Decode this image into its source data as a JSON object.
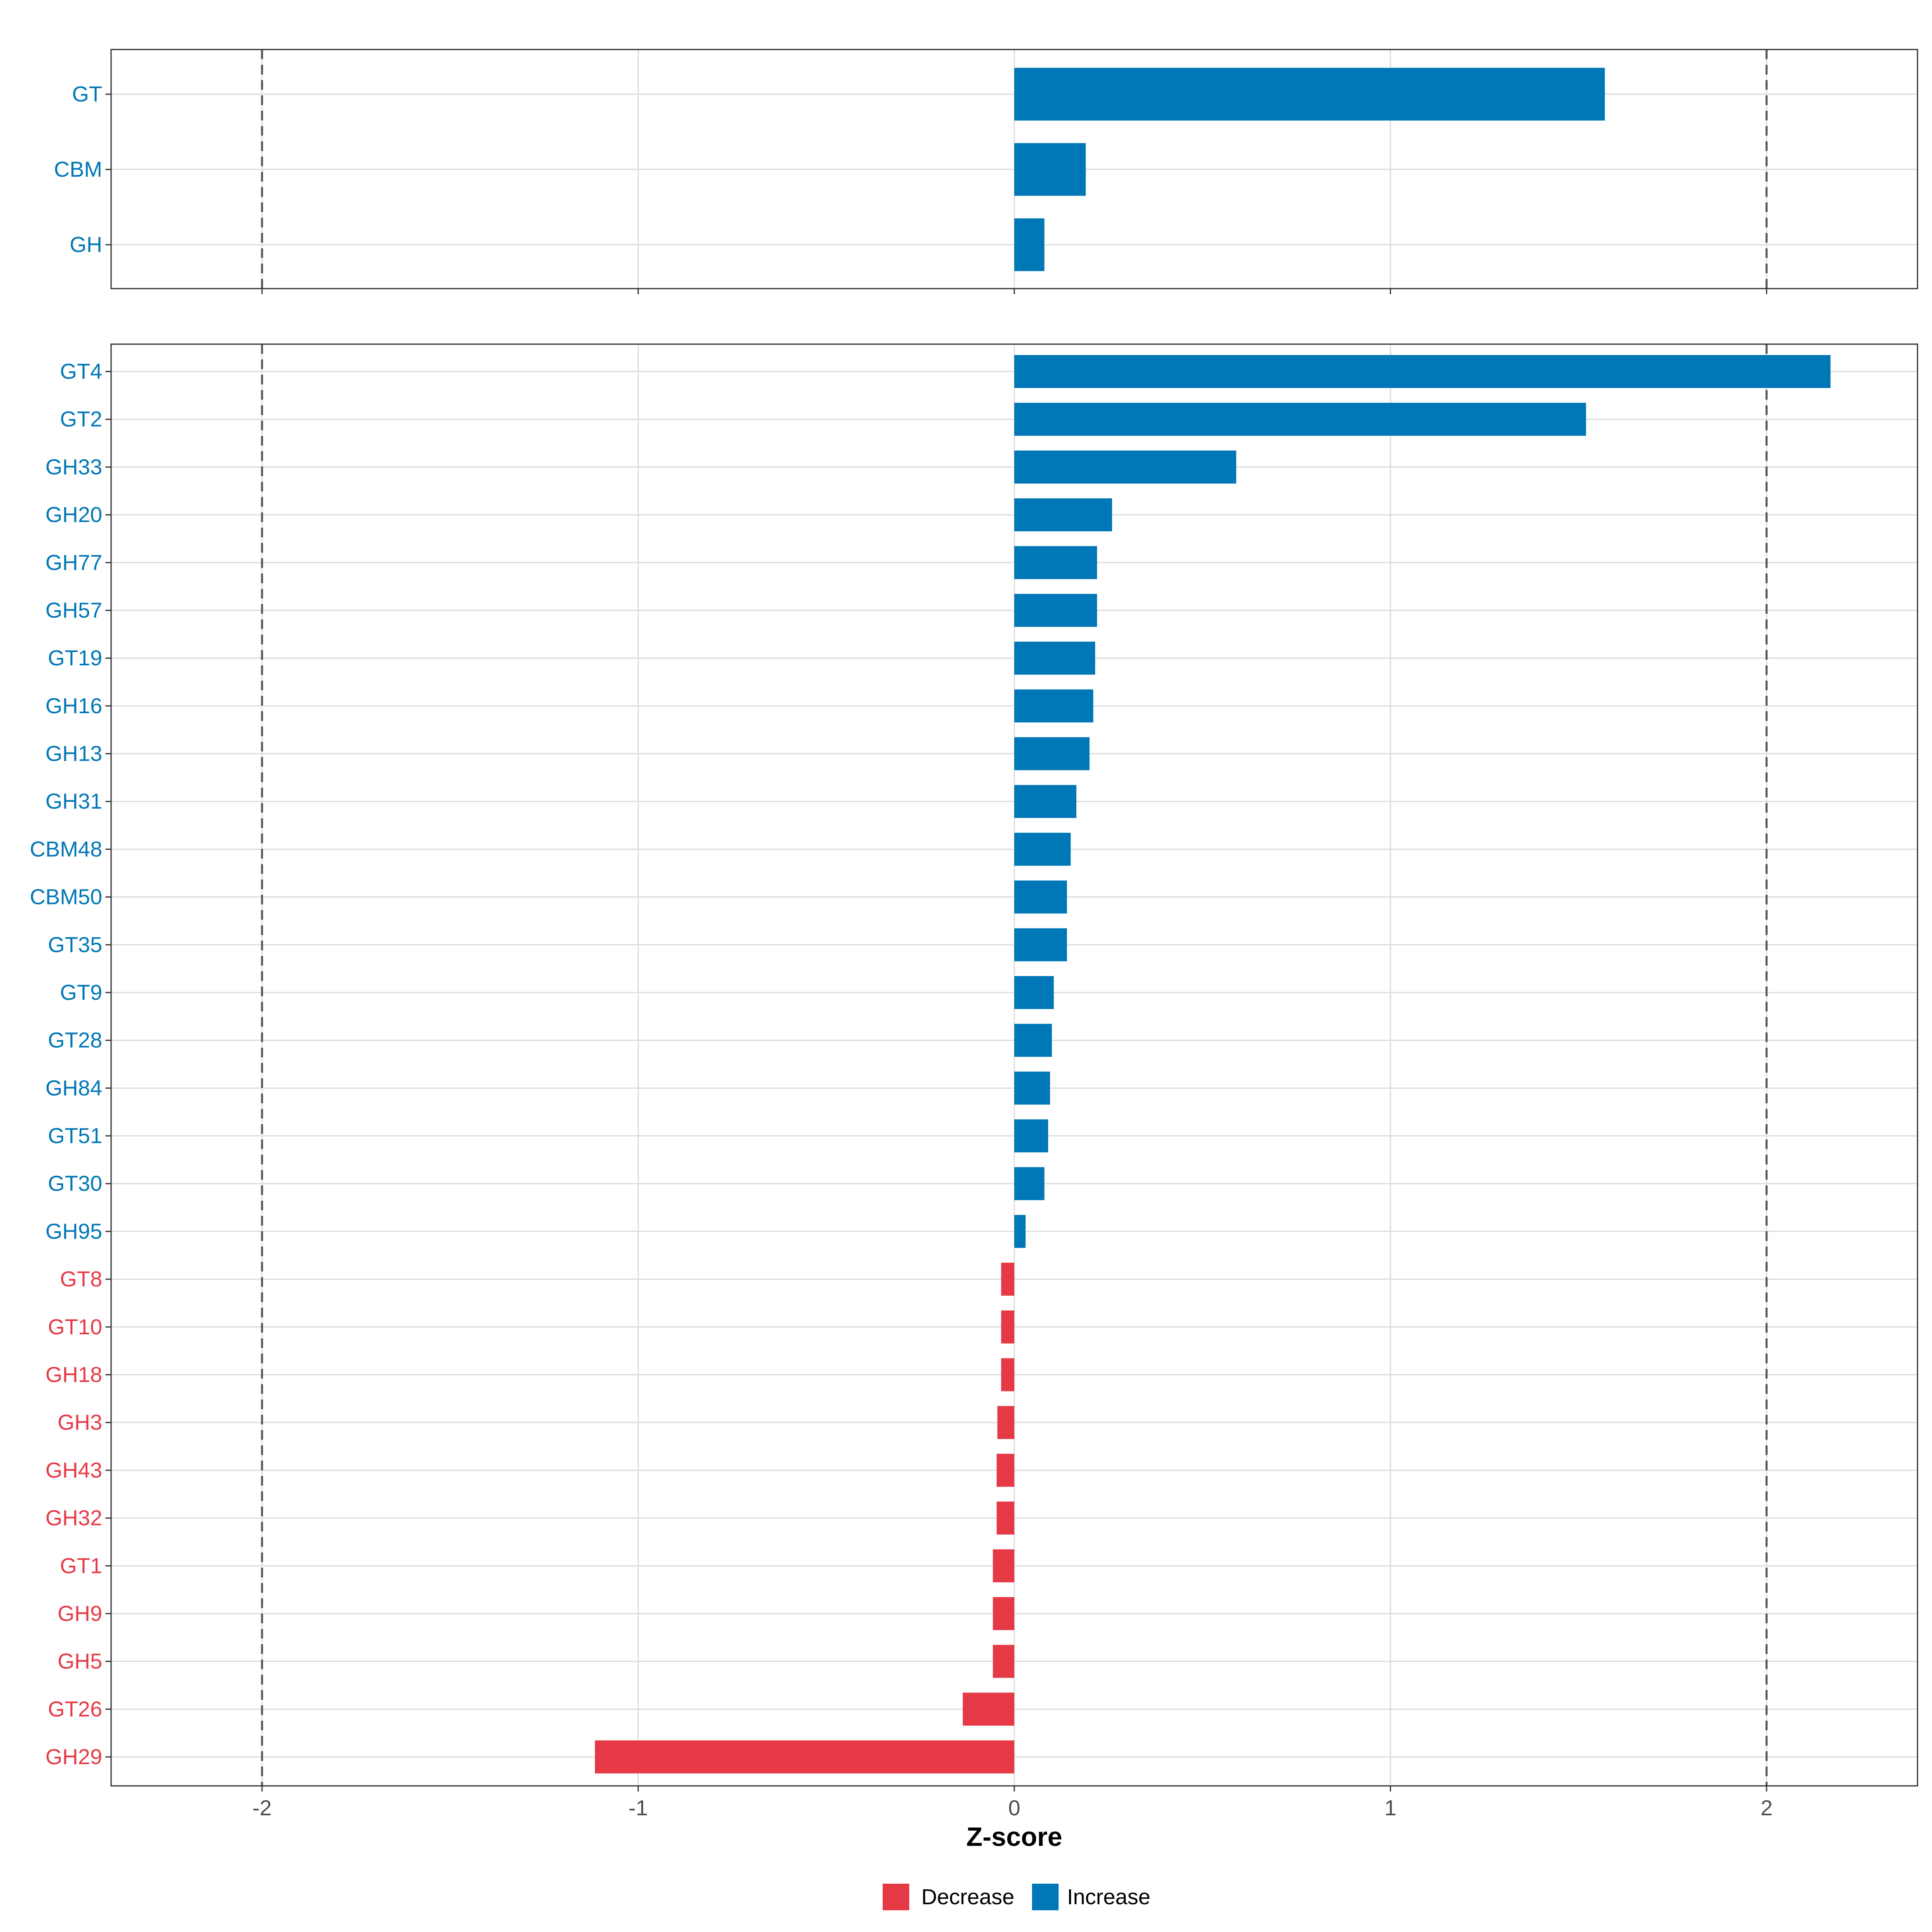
{
  "chart_data": {
    "type": "bar",
    "orientation": "horizontal",
    "xlabel": "Z-score",
    "xlim": [
      -2.4,
      2.4
    ],
    "x_ticks": [
      -2,
      -1,
      0,
      1,
      2
    ],
    "x_tick_labels": [
      "-2",
      "-1",
      "0",
      "1",
      "2"
    ],
    "reference_lines": [
      -2,
      2
    ],
    "grid": true,
    "colors": {
      "Increase": "#0077b6",
      "Decrease": "#e63946"
    },
    "legend": {
      "position": "bottom",
      "entries": [
        "Decrease",
        "Increase"
      ]
    },
    "panels": [
      {
        "name": "class",
        "categories": [
          "GT",
          "CBM",
          "GH"
        ],
        "values": [
          1.57,
          0.19,
          0.08
        ],
        "directions": [
          "Increase",
          "Increase",
          "Increase"
        ]
      },
      {
        "name": "family",
        "categories": [
          "GT4",
          "GT2",
          "GH33",
          "GH20",
          "GH77",
          "GH57",
          "GT19",
          "GH16",
          "GH13",
          "GH31",
          "CBM48",
          "CBM50",
          "GT35",
          "GT9",
          "GT28",
          "GH84",
          "GT51",
          "GT30",
          "GH95",
          "GT8",
          "GT10",
          "GH18",
          "GH3",
          "GH43",
          "GH32",
          "GT1",
          "GH9",
          "GH5",
          "GT26",
          "GH29"
        ],
        "values": [
          2.17,
          1.52,
          0.59,
          0.26,
          0.22,
          0.22,
          0.215,
          0.21,
          0.2,
          0.165,
          0.15,
          0.14,
          0.14,
          0.105,
          0.1,
          0.095,
          0.09,
          0.08,
          0.03,
          -0.035,
          -0.035,
          -0.035,
          -0.045,
          -0.047,
          -0.047,
          -0.057,
          -0.057,
          -0.057,
          -0.137,
          -1.115
        ],
        "directions": [
          "Increase",
          "Increase",
          "Increase",
          "Increase",
          "Increase",
          "Increase",
          "Increase",
          "Increase",
          "Increase",
          "Increase",
          "Increase",
          "Increase",
          "Increase",
          "Increase",
          "Increase",
          "Increase",
          "Increase",
          "Increase",
          "Increase",
          "Decrease",
          "Decrease",
          "Decrease",
          "Decrease",
          "Decrease",
          "Decrease",
          "Decrease",
          "Decrease",
          "Decrease",
          "Decrease",
          "Decrease"
        ]
      }
    ]
  }
}
